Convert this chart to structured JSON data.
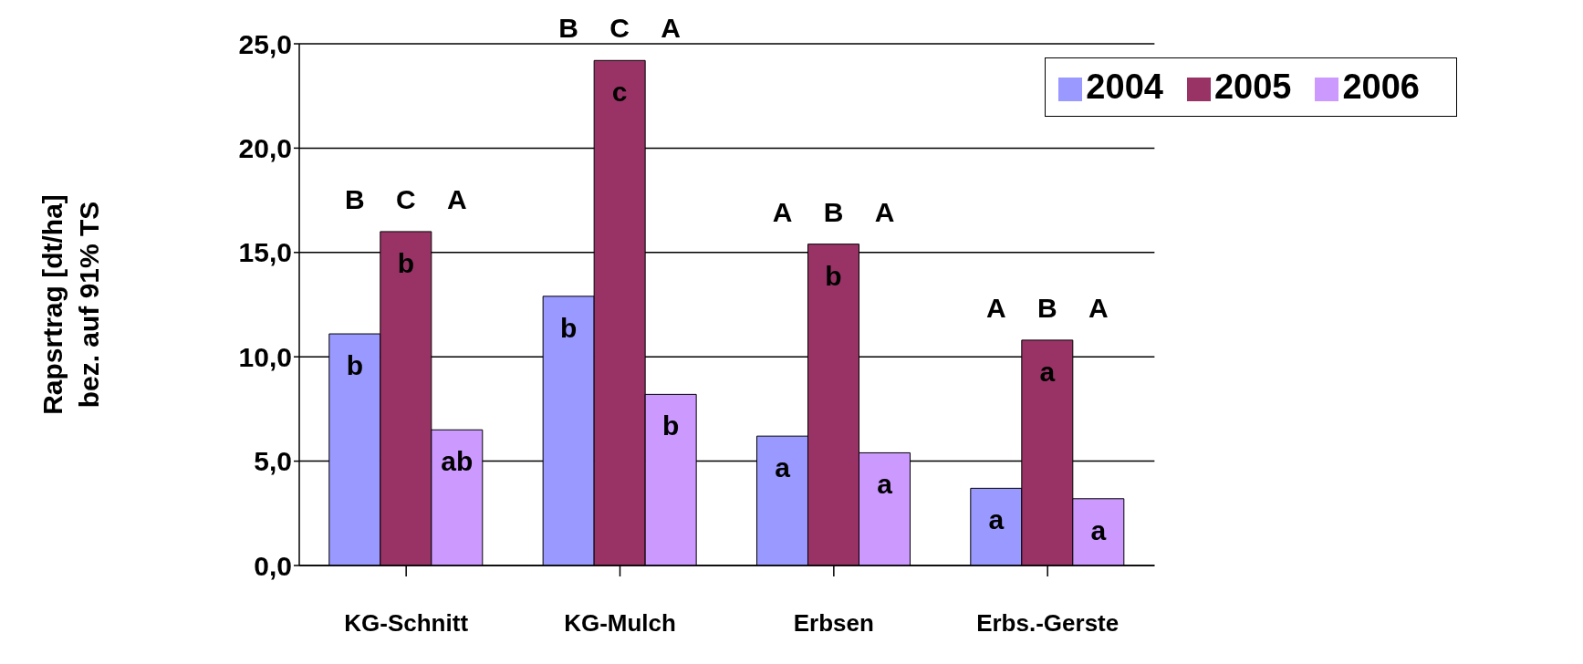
{
  "chart_data": {
    "type": "bar",
    "ylabel": "Rapsrtrag [dt/ha]\nbez. auf 91% TS",
    "categories": [
      "KG-Schnitt",
      "KG-Mulch",
      "Erbsen",
      "Erbs.-Gerste"
    ],
    "series": [
      {
        "name": "2004",
        "color": "#9999ff",
        "values": [
          11.1,
          12.9,
          6.2,
          3.7
        ],
        "value_labels": [
          "b",
          "b",
          "a",
          "a"
        ]
      },
      {
        "name": "2005",
        "color": "#993366",
        "values": [
          16.0,
          24.2,
          15.4,
          10.8
        ],
        "value_labels": [
          "b",
          "c",
          "b",
          "a"
        ]
      },
      {
        "name": "2006",
        "color": "#cc99ff",
        "values": [
          6.5,
          8.2,
          5.4,
          3.2
        ],
        "value_labels": [
          "ab",
          "b",
          "a",
          "a"
        ]
      }
    ],
    "ylim": [
      0,
      25
    ],
    "yticks": [
      {
        "value": 0,
        "label": "0,0"
      },
      {
        "value": 5,
        "label": "5,0"
      },
      {
        "value": 10,
        "label": "10,0"
      },
      {
        "value": 15,
        "label": "15,0"
      },
      {
        "value": 20,
        "label": "20,0"
      },
      {
        "value": 25,
        "label": "25,0"
      }
    ],
    "grid": "y",
    "legend": "top right",
    "annotations": [
      "B",
      "C",
      "A",
      "B",
      "C",
      "A",
      "A",
      "B",
      "A",
      "A",
      "B",
      "A"
    ]
  }
}
